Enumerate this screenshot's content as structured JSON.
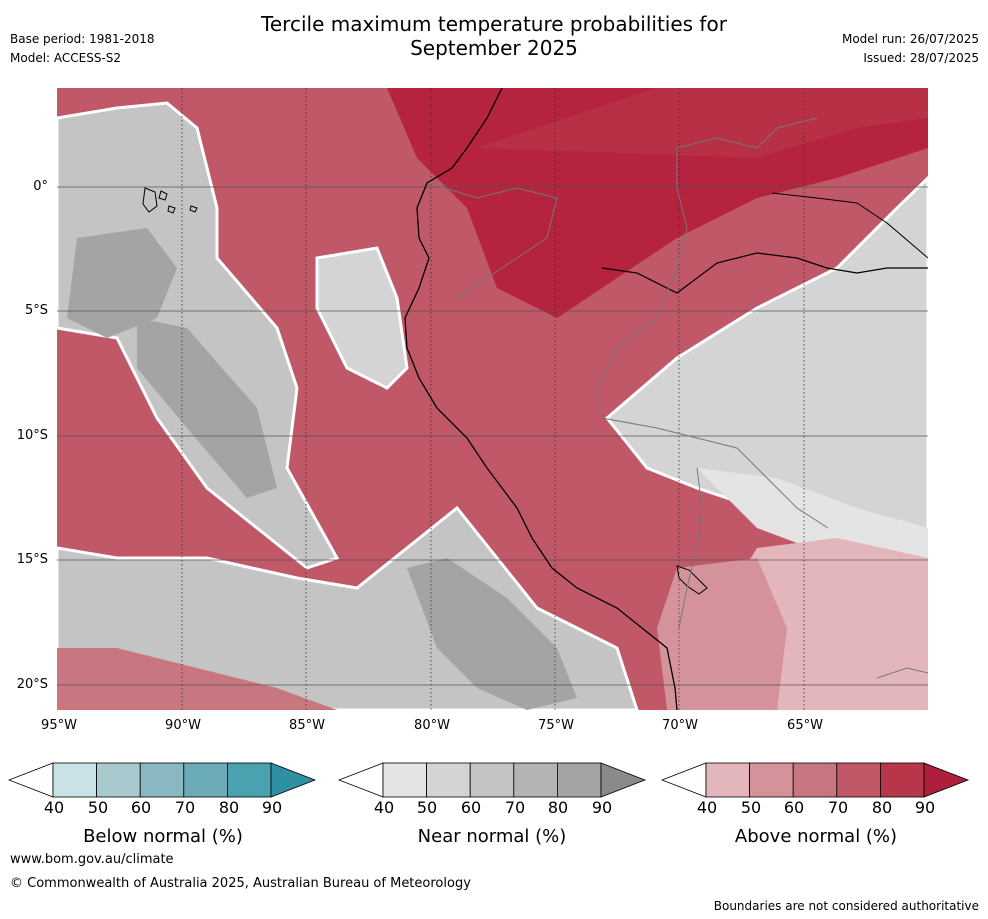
{
  "title_line1": "Tercile maximum temperature probabilities for",
  "title_line2": "September 2025",
  "meta_left": {
    "base_period": "Base period: 1981-2018",
    "model": "Model: ACCESS-S2"
  },
  "meta_right": {
    "model_run": "Model run: 26/07/2025",
    "issued": "Issued: 28/07/2025"
  },
  "axes": {
    "x_ticks": [
      "95°W",
      "90°W",
      "85°W",
      "80°W",
      "75°W",
      "70°W",
      "65°W"
    ],
    "y_ticks": [
      "0°",
      "5°S",
      "10°S",
      "15°S",
      "20°S"
    ]
  },
  "colorbars": {
    "ticks": [
      "40",
      "50",
      "60",
      "70",
      "80",
      "90"
    ],
    "below": {
      "label": "Below normal (%)",
      "colors": [
        "#c9e2e6",
        "#a8c9ce",
        "#8ab8c2",
        "#6bacb8",
        "#4aa1b0"
      ],
      "end_color": "#2f8fa3"
    },
    "near": {
      "label": "Near normal (%)",
      "colors": [
        "#e4e4e4",
        "#d4d4d4",
        "#c4c4c4",
        "#b4b4b4",
        "#a4a4a4"
      ],
      "end_color": "#8a8a8a"
    },
    "above": {
      "label": "Above normal (%)",
      "colors": [
        "#e3b6bc",
        "#d4939b",
        "#c87781",
        "#c05867",
        "#b83649"
      ],
      "end_color": "#ad1f3a"
    }
  },
  "footer": {
    "website": "www.bom.gov.au/climate",
    "copyright": "© Commonwealth of Australia 2025, Australian Bureau of Meteorology",
    "disclaimer": "Boundaries are not considered authoritative"
  }
}
